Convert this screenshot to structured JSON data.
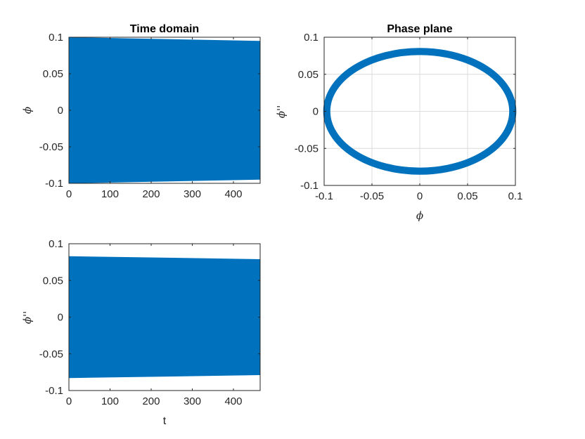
{
  "chart_data": [
    {
      "id": "time-domain",
      "type": "line",
      "title": "Time domain",
      "xlabel": "",
      "ylabel": "ϕ",
      "xlim": [
        0,
        465
      ],
      "ylim": [
        -0.1,
        0.1
      ],
      "xticks": [
        0,
        100,
        200,
        300,
        400
      ],
      "xtick_labels": [
        "0",
        "100",
        "200",
        "300",
        "400"
      ],
      "yticks": [
        -0.1,
        -0.05,
        0,
        0.05,
        0.1
      ],
      "ytick_labels": [
        "-0.1",
        "-0.05",
        "0",
        "0.05",
        "0.1"
      ],
      "grid": false,
      "color": "#0072BD",
      "series": [
        {
          "x": [
            0,
            465
          ],
          "upper": [
            0.1,
            0.095
          ],
          "lower": [
            -0.1,
            -0.095
          ]
        }
      ]
    },
    {
      "id": "phase-plane",
      "type": "line",
      "title": "Phase plane",
      "xlabel": "ϕ",
      "ylabel": "ϕ''",
      "xlim": [
        -0.1,
        0.1
      ],
      "ylim": [
        -0.1,
        0.1
      ],
      "xticks": [
        -0.1,
        -0.05,
        0,
        0.05,
        0.1
      ],
      "xtick_labels": [
        "-0.1",
        "-0.05",
        "0",
        "0.05",
        "0.1"
      ],
      "yticks": [
        -0.1,
        -0.05,
        0,
        0.05,
        0.1
      ],
      "ytick_labels": [
        "-0.1",
        "-0.05",
        "0",
        "0.05",
        "0.1"
      ],
      "grid": true,
      "color": "#0072BD",
      "series": [
        {
          "shape": "ellipse",
          "x_amplitude": [
            0.0995,
            0.095
          ],
          "y_amplitude": [
            0.0825,
            0.079
          ]
        }
      ]
    },
    {
      "id": "velocity-domain",
      "type": "line",
      "title": "",
      "xlabel": "t",
      "ylabel": "ϕ''",
      "xlim": [
        0,
        465
      ],
      "ylim": [
        -0.1,
        0.1
      ],
      "xticks": [
        0,
        100,
        200,
        300,
        400
      ],
      "xtick_labels": [
        "0",
        "100",
        "200",
        "300",
        "400"
      ],
      "yticks": [
        -0.1,
        -0.05,
        0,
        0.05,
        0.1
      ],
      "ytick_labels": [
        "-0.1",
        "-0.05",
        "0",
        "0.05",
        "0.1"
      ],
      "grid": false,
      "color": "#0072BD",
      "series": [
        {
          "x": [
            0,
            465
          ],
          "upper": [
            0.083,
            0.079
          ],
          "lower": [
            -0.083,
            -0.079
          ]
        }
      ]
    }
  ]
}
